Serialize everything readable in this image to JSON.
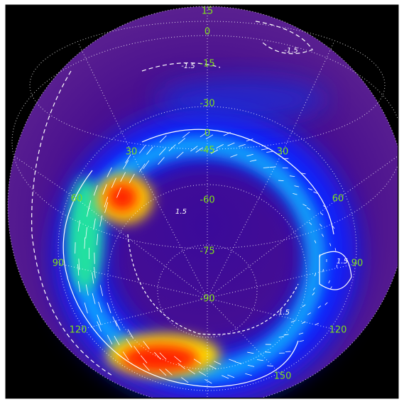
{
  "lat_labels": [
    "15",
    "0",
    "-15",
    "-30",
    "0",
    "-45",
    "-60",
    "-75",
    "-90"
  ],
  "lon_labels": [
    "30",
    "30",
    "60",
    "60",
    "90",
    "90",
    "120",
    "120",
    "150"
  ],
  "contour_labels": [
    "-1.5",
    "-1.5",
    "1.5",
    "1.5",
    "1.5"
  ]
}
